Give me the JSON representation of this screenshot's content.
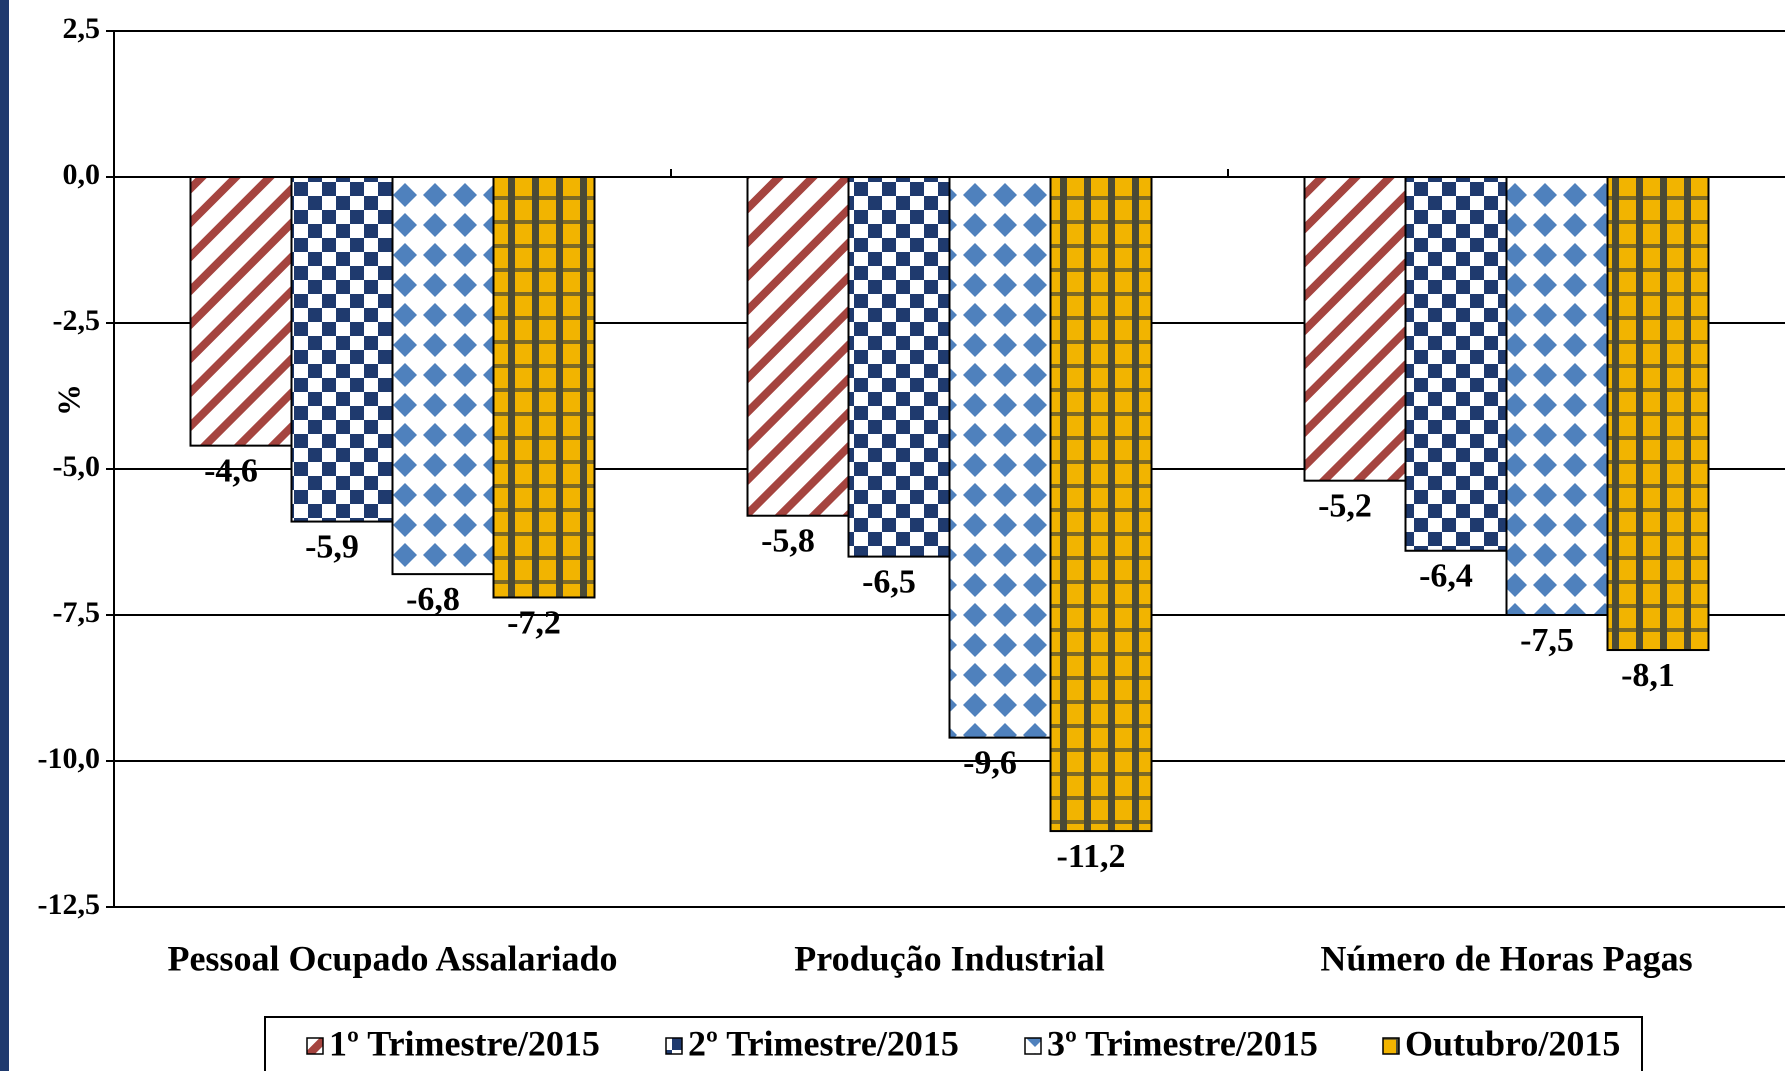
{
  "chart_data": {
    "type": "bar",
    "y_label": "%",
    "categories": [
      "Pessoal Ocupado Assalariado",
      "Produção Industrial",
      "Número de Horas Pagas"
    ],
    "series": [
      {
        "name": "1º Trimestre/2015",
        "color": "#a5443f",
        "values": [
          -4.6,
          -5.8,
          -5.2
        ],
        "value_labels": [
          "-4,6",
          "-5,8",
          "-5,2"
        ]
      },
      {
        "name": "2º Trimestre/2015",
        "color": "#1f3a6e",
        "values": [
          -5.9,
          -6.5,
          -6.4
        ],
        "value_labels": [
          "-5,9",
          "-6,5",
          "-6,4"
        ]
      },
      {
        "name": "3º Trimestre/2015",
        "color": "#4f81bd",
        "values": [
          -6.8,
          -9.6,
          -7.5
        ],
        "value_labels": [
          "-6,8",
          "-9,6",
          "-7,5"
        ]
      },
      {
        "name": "Outubro/2015",
        "color": "#f2b400",
        "values": [
          -7.2,
          -11.2,
          -8.1
        ],
        "value_labels": [
          "-7,2",
          "-11,2",
          "-8,1"
        ]
      }
    ],
    "ylim": [
      -12.5,
      2.5
    ],
    "yticks": [
      {
        "value": -12.5,
        "label": "-12,5"
      },
      {
        "value": -10,
        "label": "-10,0"
      },
      {
        "value": -7.5,
        "label": "-7,5"
      },
      {
        "value": -5,
        "label": "-5,0"
      },
      {
        "value": -2.5,
        "label": "-2,5"
      },
      {
        "value": 0,
        "label": "0,0"
      },
      {
        "value": 2.5,
        "label": "2,5"
      }
    ],
    "grid": true,
    "legend": "bottom"
  }
}
